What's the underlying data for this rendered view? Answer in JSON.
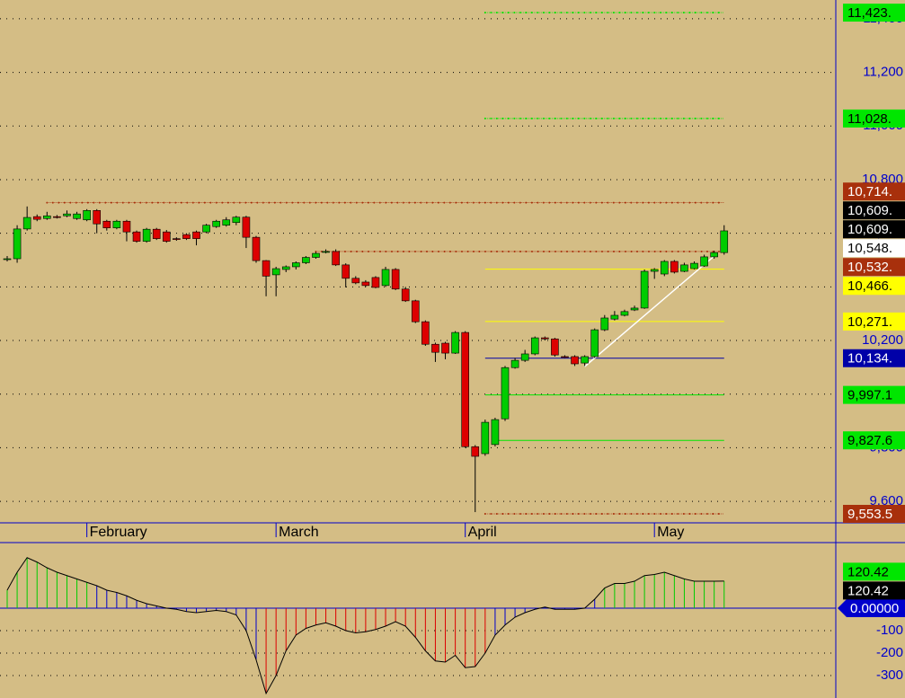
{
  "chart_data": [
    {
      "type": "candlestick",
      "categories": [
        null,
        null,
        null,
        null,
        null,
        null,
        null,
        null,
        "February",
        null,
        null,
        null,
        null,
        null,
        null,
        null,
        null,
        null,
        null,
        null,
        null,
        null,
        null,
        null,
        null,
        null,
        null,
        "March",
        null,
        null,
        null,
        null,
        null,
        null,
        null,
        null,
        null,
        null,
        null,
        null,
        null,
        null,
        null,
        null,
        null,
        null,
        "April",
        null,
        null,
        null,
        null,
        null,
        null,
        null,
        null,
        null,
        null,
        null,
        null,
        null,
        null,
        null,
        null,
        null,
        null,
        "May",
        null,
        null,
        null,
        null,
        null,
        null,
        null
      ],
      "candles": [
        [
          10505,
          10515,
          10495,
          10505
        ],
        [
          10505,
          10630,
          10490,
          10616
        ],
        [
          10616,
          10700,
          10610,
          10659
        ],
        [
          10662,
          10670,
          10645,
          10652
        ],
        [
          10655,
          10680,
          10650,
          10665
        ],
        [
          10662,
          10668,
          10655,
          10660
        ],
        [
          10665,
          10685,
          10660,
          10672
        ],
        [
          10655,
          10680,
          10650,
          10672
        ],
        [
          10650,
          10690,
          10645,
          10685
        ],
        [
          10685,
          10690,
          10600,
          10635
        ],
        [
          10645,
          10650,
          10610,
          10620
        ],
        [
          10620,
          10650,
          10615,
          10645
        ],
        [
          10645,
          10650,
          10570,
          10605
        ],
        [
          10605,
          10610,
          10565,
          10570
        ],
        [
          10570,
          10620,
          10565,
          10615
        ],
        [
          10615,
          10620,
          10575,
          10580
        ],
        [
          10605,
          10612,
          10565,
          10570
        ],
        [
          10580,
          10585,
          10572,
          10578
        ],
        [
          10595,
          10600,
          10575,
          10580
        ],
        [
          10605,
          10610,
          10555,
          10580
        ],
        [
          10605,
          10635,
          10600,
          10630
        ],
        [
          10625,
          10650,
          10620,
          10645
        ],
        [
          10630,
          10660,
          10625,
          10650
        ],
        [
          10640,
          10665,
          10630,
          10660
        ],
        [
          10660,
          10665,
          10545,
          10585
        ],
        [
          10585,
          10590,
          10490,
          10498
        ],
        [
          10498,
          10500,
          10365,
          10440
        ],
        [
          10445,
          10475,
          10365,
          10468
        ],
        [
          10465,
          10480,
          10455,
          10475
        ],
        [
          10475,
          10495,
          10465,
          10490
        ],
        [
          10490,
          10515,
          10485,
          10510
        ],
        [
          10510,
          10530,
          10505,
          10525
        ],
        [
          10530,
          10540,
          10525,
          10532
        ],
        [
          10532,
          10540,
          10478,
          10482
        ],
        [
          10482,
          10488,
          10398,
          10432
        ],
        [
          10432,
          10440,
          10410,
          10415
        ],
        [
          10418,
          10425,
          10400,
          10405
        ],
        [
          10435,
          10440,
          10395,
          10398
        ],
        [
          10405,
          10475,
          10400,
          10465
        ],
        [
          10465,
          10470,
          10388,
          10392
        ],
        [
          10392,
          10400,
          10344,
          10348
        ],
        [
          10348,
          10352,
          10265,
          10270
        ],
        [
          10270,
          10275,
          10180,
          10186
        ],
        [
          10186,
          10192,
          10120,
          10156
        ],
        [
          10190,
          10195,
          10130,
          10153
        ],
        [
          10153,
          10235,
          10150,
          10230
        ],
        [
          10230,
          10235,
          9800,
          9804
        ],
        [
          9804,
          9810,
          9560,
          9768
        ],
        [
          9778,
          9905,
          9770,
          9895
        ],
        [
          9812,
          9912,
          9805,
          9905
        ],
        [
          9908,
          10105,
          9900,
          10099
        ],
        [
          10099,
          10135,
          10095,
          10126
        ],
        [
          10126,
          10165,
          10120,
          10150
        ],
        [
          10150,
          10215,
          10145,
          10210
        ],
        [
          10210,
          10215,
          10200,
          10206
        ],
        [
          10206,
          10210,
          10140,
          10146
        ],
        [
          10140,
          10145,
          10135,
          10138
        ],
        [
          10140,
          10145,
          10105,
          10113
        ],
        [
          10116,
          10145,
          10105,
          10140
        ],
        [
          10140,
          10245,
          10135,
          10240
        ],
        [
          10240,
          10295,
          10235,
          10284
        ],
        [
          10280,
          10310,
          10275,
          10294
        ],
        [
          10294,
          10315,
          10290,
          10308
        ],
        [
          10314,
          10330,
          10310,
          10321
        ],
        [
          10321,
          10465,
          10318,
          10458
        ],
        [
          10458,
          10470,
          10430,
          10465
        ],
        [
          10448,
          10500,
          10440,
          10495
        ],
        [
          10495,
          10500,
          10450,
          10455
        ],
        [
          10458,
          10490,
          10455,
          10482
        ],
        [
          10468,
          10495,
          10465,
          10488
        ],
        [
          10478,
          10520,
          10475,
          10512
        ],
        [
          10512,
          10535,
          10505,
          10528
        ],
        [
          10528,
          10630,
          10520,
          10609
        ]
      ],
      "up_color": "#00cc00",
      "down_color": "#dd0000",
      "ylim": [
        9520,
        11470
      ],
      "yticks": [
        {
          "value": 9600,
          "label": "9,600"
        },
        {
          "value": 9800,
          "label": "9,800"
        },
        {
          "value": 10000,
          "label": "10,000"
        },
        {
          "value": 10200,
          "label": "10,200"
        },
        {
          "value": 10400,
          "label": "10,400"
        },
        {
          "value": 10600,
          "label": "10,600"
        },
        {
          "value": 10800,
          "label": "10,800"
        },
        {
          "value": 11000,
          "label": "11,000"
        },
        {
          "value": 11200,
          "label": "11,200"
        },
        {
          "value": 11400,
          "label": "11,400"
        }
      ],
      "grid": true,
      "levels": [
        {
          "value": 11423,
          "label": "11,423.",
          "color": "#00e600",
          "text_color": "#000",
          "start": 48,
          "style": "dots"
        },
        {
          "value": 11028,
          "label": "11,028.",
          "color": "#00e600",
          "text_color": "#000",
          "start": 48,
          "style": "dots"
        },
        {
          "value": 10714,
          "label": "10,714.",
          "color": "#a8300c",
          "text_color": "#fff",
          "start": 4,
          "style": "dots"
        },
        {
          "value": 10532,
          "label": "10,532.",
          "color": "#a8300c",
          "text_color": "#fff",
          "start": 31,
          "style": "dots"
        },
        {
          "value": 10466,
          "label": "10,466.",
          "color": "#ffff00",
          "text_color": "#000",
          "start": 48,
          "style": "solid"
        },
        {
          "value": 10271,
          "label": "10,271.",
          "color": "#ffff00",
          "text_color": "#000",
          "start": 48,
          "style": "solid"
        },
        {
          "value": 10134,
          "label": "10,134.",
          "color": "#0000a8",
          "text_color": "#fff",
          "start": 48,
          "style": "solid"
        },
        {
          "value": 9997.1,
          "label": "9,997.1",
          "color": "#00e600",
          "text_color": "#000",
          "start": 48,
          "style": "solid"
        },
        {
          "value": 9827.6,
          "label": "9,827.6",
          "color": "#00e600",
          "text_color": "#000",
          "start": 49,
          "style": "solid"
        },
        {
          "value": 9553.5,
          "label": "9,553.5",
          "color": "#a8300c",
          "text_color": "#fff",
          "start": 48,
          "style": "dots"
        }
      ],
      "last_labels": [
        {
          "value": 10609,
          "label": "10,609.",
          "color": "#000",
          "text_color": "#fff"
        },
        {
          "value": 10609,
          "label": "10,609.",
          "color": "#000",
          "text_color": "#fff"
        },
        {
          "value": 10548,
          "label": "10,548.",
          "color": "#fff",
          "text_color": "#000"
        }
      ],
      "trendline": {
        "color": "#ffffff",
        "x": [
          58,
          71
        ],
        "y": [
          10103,
          10515
        ]
      }
    },
    {
      "type": "histogram",
      "values": [
        80,
        160,
        225,
        205,
        180,
        160,
        145,
        130,
        115,
        100,
        80,
        70,
        55,
        35,
        20,
        10,
        0,
        -5,
        -15,
        -20,
        -15,
        -10,
        -15,
        -30,
        -100,
        -230,
        -380,
        -300,
        -190,
        -120,
        -90,
        -75,
        -65,
        -80,
        -100,
        -110,
        -105,
        -95,
        -80,
        -60,
        -80,
        -130,
        -190,
        -235,
        -240,
        -210,
        -265,
        -260,
        -200,
        -120,
        -75,
        -40,
        -20,
        -5,
        5,
        -5,
        -5,
        -5,
        0,
        40,
        90,
        110,
        110,
        120,
        145,
        150,
        160,
        145,
        130,
        120,
        120,
        120,
        120.42
      ],
      "bar_colors": [
        "#00cc00",
        "#00cc00",
        "#00cc00",
        "#00cc00",
        "#00cc00",
        "#00cc00",
        "#00cc00",
        "#00cc00",
        "#00cc00",
        "#0000cc",
        "#0000cc",
        "#0000cc",
        "#0000cc",
        "#0000cc",
        "#0000cc",
        "#0000cc",
        "#0000cc",
        "#0000cc",
        "#0000cc",
        "#0000cc",
        "#0000cc",
        "#0000cc",
        "#0000cc",
        "#0000cc",
        "#0000cc",
        "#0000cc",
        "#dd0000",
        "#dd0000",
        "#dd0000",
        "#dd0000",
        "#dd0000",
        "#dd0000",
        "#dd0000",
        "#dd0000",
        "#dd0000",
        "#dd0000",
        "#dd0000",
        "#dd0000",
        "#dd0000",
        "#dd0000",
        "#dd0000",
        "#dd0000",
        "#dd0000",
        "#dd0000",
        "#dd0000",
        "#dd0000",
        "#dd0000",
        "#dd0000",
        "#dd0000",
        "#0000cc",
        "#0000cc",
        "#0000cc",
        "#0000cc",
        "#0000cc",
        "#0000cc",
        "#0000cc",
        "#0000cc",
        "#0000cc",
        "#0000cc",
        "#0000cc",
        "#00cc00",
        "#00cc00",
        "#00cc00",
        "#00cc00",
        "#00cc00",
        "#00cc00",
        "#00cc00",
        "#00cc00",
        "#00cc00",
        "#00cc00",
        "#00cc00",
        "#00cc00",
        "#00cc00"
      ],
      "line_color": "#000000",
      "ylim": [
        -400,
        288
      ],
      "yticks": [
        -300,
        -200,
        -100
      ],
      "zero_label": {
        "value": 0,
        "label": "0.00000",
        "color": "#0000cc",
        "text_color": "#fff"
      },
      "last_labels": [
        {
          "value": 120.42,
          "label": "120.42",
          "color": "#00e600",
          "text_color": "#000"
        },
        {
          "value": 120.42,
          "label": "120.42",
          "color": "#000",
          "text_color": "#fff"
        }
      ]
    }
  ]
}
